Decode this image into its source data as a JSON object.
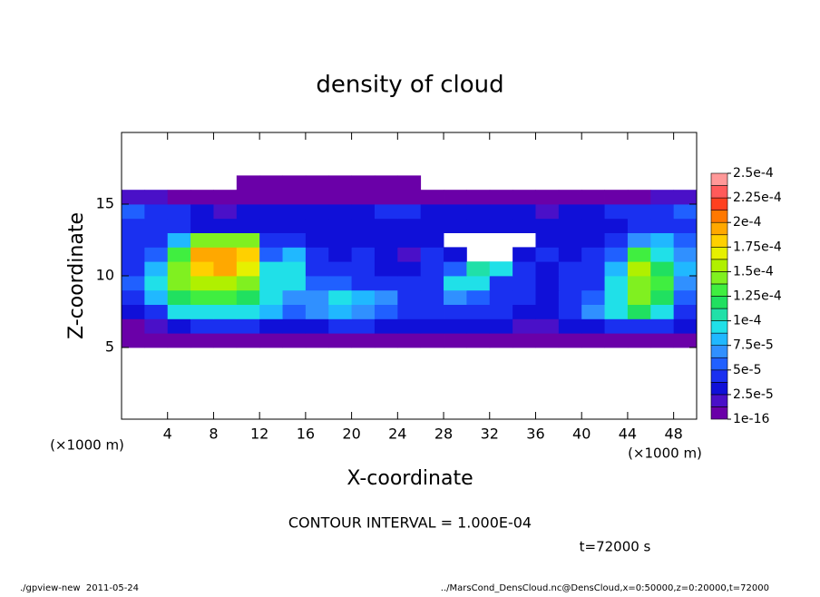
{
  "chart_data": {
    "type": "heatmap",
    "title": "density of cloud",
    "x_label": "X-coordinate",
    "y_label": "Z-coordinate",
    "x_unit": "(×1000 m)",
    "y_unit": "(×1000 m)",
    "annotation": "CONTOUR INTERVAL = 1.000E-04",
    "time_label": "t=72000 s",
    "footer_left": "./gpview-new  2011-05-24",
    "footer_right": "../MarsCond_DensCloud.nc@DensCloud,x=0:50000,z=0:20000,t=72000",
    "xlim": [
      0,
      50
    ],
    "ylim": [
      0,
      20
    ],
    "xticks": [
      4,
      8,
      12,
      16,
      20,
      24,
      28,
      32,
      36,
      40,
      44,
      48
    ],
    "yticks": [
      5,
      10,
      15
    ],
    "x": [
      1,
      3,
      5,
      7,
      9,
      11,
      13,
      15,
      17,
      19,
      21,
      23,
      25,
      27,
      29,
      31,
      33,
      35,
      37,
      39,
      41,
      43,
      45,
      47,
      49
    ],
    "y": [
      5.5,
      6.5,
      7.5,
      8.5,
      9.5,
      10.5,
      11.5,
      12.5,
      13.5,
      14.5,
      15.5,
      16.5
    ],
    "values": [
      [
        1e-05,
        1e-05,
        1e-05,
        1e-05,
        1e-05,
        1e-05,
        1e-05,
        1e-05,
        1e-05,
        1e-05,
        1e-05,
        1e-05,
        1e-05,
        1e-05,
        1e-05,
        1e-05,
        1e-05,
        1e-05,
        1e-05,
        1e-05,
        1e-05,
        1e-05,
        1e-05,
        1e-05,
        1e-05
      ],
      [
        1e-05,
        2e-05,
        3e-05,
        4e-05,
        4e-05,
        4e-05,
        3e-05,
        3e-05,
        3e-05,
        4e-05,
        4e-05,
        3e-05,
        3e-05,
        3e-05,
        3e-05,
        3e-05,
        3e-05,
        2e-05,
        2e-05,
        3e-05,
        3e-05,
        4e-05,
        4e-05,
        4e-05,
        3e-05
      ],
      [
        3e-05,
        5e-05,
        9e-05,
        0.0001,
        0.0001,
        9e-05,
        8e-05,
        6e-05,
        7e-05,
        8e-05,
        7e-05,
        6e-05,
        5e-05,
        4e-05,
        5e-05,
        4e-05,
        4e-05,
        3e-05,
        3e-05,
        4e-05,
        7e-05,
        9e-05,
        0.00012,
        0.0001,
        5e-05
      ],
      [
        5e-05,
        8e-05,
        0.00012,
        0.00013,
        0.00013,
        0.00012,
        9e-05,
        7e-05,
        7e-05,
        9e-05,
        8e-05,
        7e-05,
        5e-05,
        5e-05,
        7e-05,
        6e-05,
        4e-05,
        4e-05,
        3e-05,
        4e-05,
        6e-05,
        0.0001,
        0.00014,
        0.00012,
        6e-05
      ],
      [
        6e-05,
        9e-05,
        0.00014,
        0.00016,
        0.00016,
        0.00015,
        0.0001,
        9e-05,
        6e-05,
        6e-05,
        5e-05,
        4e-05,
        4e-05,
        5e-05,
        0.0001,
        9e-05,
        5e-05,
        4e-05,
        3e-05,
        4e-05,
        5e-05,
        9e-05,
        0.00015,
        0.00013,
        7e-05
      ],
      [
        5e-05,
        8e-05,
        0.00014,
        0.00018,
        0.00019,
        0.00017,
        9e-05,
        0.0001,
        5e-05,
        4e-05,
        4e-05,
        3e-05,
        3e-05,
        4e-05,
        6e-05,
        0.00011,
        0.0001,
        4e-05,
        3e-05,
        4e-05,
        4e-05,
        8e-05,
        0.00016,
        0.00012,
        8e-05
      ],
      [
        4e-05,
        6e-05,
        0.00013,
        0.00019,
        0.0002,
        0.00018,
        6e-05,
        8e-05,
        4e-05,
        3e-05,
        4e-05,
        3e-05,
        2e-05,
        4e-05,
        3e-05,
        null,
        null,
        3e-05,
        4e-05,
        3e-05,
        4e-05,
        6e-05,
        0.00013,
        0.0001,
        7e-05
      ],
      [
        4e-05,
        5e-05,
        8e-05,
        0.00015,
        0.00015,
        0.00014,
        5e-05,
        4e-05,
        3e-05,
        3e-05,
        3e-05,
        3e-05,
        3e-05,
        3e-05,
        null,
        null,
        null,
        null,
        3e-05,
        3e-05,
        3e-05,
        5e-05,
        7e-05,
        8e-05,
        6e-05
      ],
      [
        4e-05,
        4e-05,
        4e-05,
        3e-05,
        3e-05,
        3e-05,
        3e-05,
        3e-05,
        3e-05,
        3e-05,
        3e-05,
        3e-05,
        3e-05,
        3e-05,
        3e-05,
        3e-05,
        3e-05,
        3e-05,
        3e-05,
        3e-05,
        3e-05,
        3e-05,
        4e-05,
        5e-05,
        5e-05
      ],
      [
        6e-05,
        5e-05,
        4e-05,
        3e-05,
        2e-05,
        3e-05,
        3e-05,
        3e-05,
        3e-05,
        3e-05,
        3e-05,
        4e-05,
        4e-05,
        3e-05,
        3e-05,
        3e-05,
        3e-05,
        3e-05,
        2e-05,
        3e-05,
        3e-05,
        4e-05,
        5e-05,
        5e-05,
        6e-05
      ],
      [
        2e-05,
        2e-05,
        1e-05,
        1e-05,
        1e-05,
        1e-05,
        1e-05,
        1e-05,
        1e-05,
        1e-05,
        1e-05,
        1e-05,
        1e-05,
        1e-05,
        1e-05,
        1e-05,
        1e-05,
        1e-05,
        1e-05,
        1e-05,
        1e-05,
        1e-05,
        1e-05,
        2e-05,
        2e-05
      ],
      [
        null,
        null,
        null,
        null,
        null,
        1e-05,
        1e-05,
        1e-05,
        1e-05,
        1e-05,
        1e-05,
        1e-05,
        1e-05,
        null,
        null,
        null,
        null,
        null,
        null,
        null,
        null,
        null,
        null,
        null,
        null
      ]
    ],
    "colorbar_ticks": [
      {
        "value": 1e-16,
        "label": "1e-16"
      },
      {
        "value": 2.5e-05,
        "label": "2.5e-5"
      },
      {
        "value": 5e-05,
        "label": "5e-5"
      },
      {
        "value": 7.5e-05,
        "label": "7.5e-5"
      },
      {
        "value": 0.0001,
        "label": "1e-4"
      },
      {
        "value": 0.000125,
        "label": "1.25e-4"
      },
      {
        "value": 0.00015,
        "label": "1.5e-4"
      },
      {
        "value": 0.000175,
        "label": "1.75e-4"
      },
      {
        "value": 0.0002,
        "label": "2e-4"
      },
      {
        "value": 0.000225,
        "label": "2.25e-4"
      },
      {
        "value": 0.00025,
        "label": "2.5e-4"
      }
    ],
    "colors": [
      "#6a00a8",
      "#4a10c8",
      "#1010d8",
      "#1a30f0",
      "#2060ff",
      "#3090ff",
      "#20b8ff",
      "#20e0e8",
      "#20e0a8",
      "#20e060",
      "#40ee40",
      "#80f020",
      "#b0f000",
      "#e6f000",
      "#ffd000",
      "#ffa800",
      "#ff7800",
      "#ff4020",
      "#ff5a5a",
      "#ff9898"
    ]
  }
}
